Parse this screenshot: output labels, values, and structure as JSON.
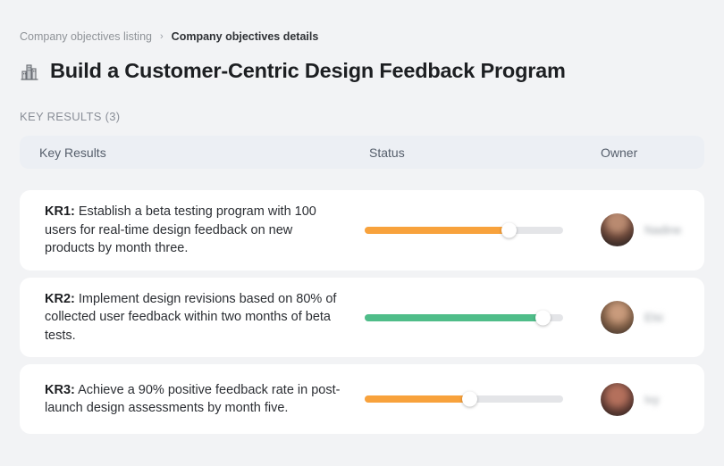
{
  "breadcrumb": {
    "separator": "›",
    "items": [
      {
        "label": "Company objectives listing"
      },
      {
        "label": "Company objectives details"
      }
    ]
  },
  "page": {
    "icon": "city-buildings-icon",
    "title": "Build a Customer-Centric Design Feedback Program",
    "section_label": "KEY RESULTS (3)"
  },
  "table": {
    "headers": {
      "key_results": "Key Results",
      "status": "Status",
      "owner": "Owner"
    },
    "rows": [
      {
        "kr_label": "KR1:",
        "description": "Establish a beta testing program with 100 users for real-time design feedback on new products by month three.",
        "progress_percent": 73,
        "progress_color": "#F8A23C",
        "owner_name": "Nadine"
      },
      {
        "kr_label": "KR2:",
        "description": "Implement design revisions based on 80% of collected user feedback within two months of beta tests.",
        "progress_percent": 90,
        "progress_color": "#4FBD89",
        "owner_name": "Elsi"
      },
      {
        "kr_label": "KR3:",
        "description": "Achieve a 90% positive feedback rate in post-launch design assessments by month five.",
        "progress_percent": 53,
        "progress_color": "#F8A23C",
        "owner_name": "Ivy"
      }
    ]
  },
  "colors": {
    "page_background": "#F2F3F5",
    "card_background": "#FFFFFF",
    "table_header_background": "#ECEFF4",
    "progress_track": "#E4E5E8",
    "progress_orange": "#F8A23C",
    "progress_green": "#4FBD89"
  }
}
